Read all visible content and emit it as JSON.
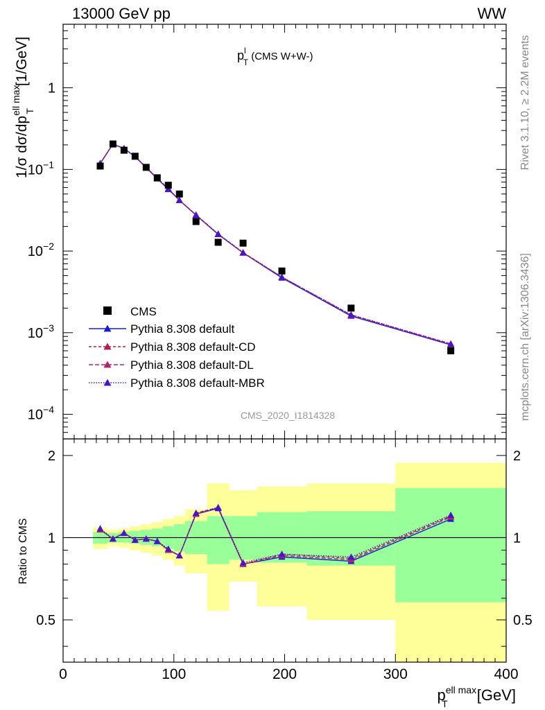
{
  "header": {
    "left": "13000 GeV pp",
    "right": "WW"
  },
  "plot_title": {
    "main": "p",
    "sup": "l",
    "sub": "T",
    "rest": " (CMS W+W-)"
  },
  "watermark": "CMS_2020_I1814328",
  "side_text": {
    "rivet": "Rivet 3.1.10, ≥ 2.2M events",
    "mcplots": "mcplots.cern.ch [arXiv:1306.3436]"
  },
  "axis_labels": {
    "y_main": {
      "prefix": "1/σ dσ/dp",
      "sup": "ell max",
      "sub": "T",
      "suffix": " [1/GeV]"
    },
    "y_ratio": "Ratio to CMS",
    "x": {
      "prefix": "p",
      "sup": "ell max",
      "sub": "T",
      "suffix": " [GeV]"
    }
  },
  "colors": {
    "data": "#000000",
    "default": "#1a1adb",
    "cd": "#b81a4a",
    "dl": "#b0246e",
    "mbr": "#4a14c8",
    "band_inner": "#99ff99",
    "band_outer": "#ffff99"
  },
  "chart_data": {
    "type": "line",
    "x_range": [
      0,
      400
    ],
    "y_range_log": [
      5e-05,
      6
    ],
    "ratio_range": [
      0.35,
      2.3
    ],
    "x_ticks": [
      0,
      100,
      200,
      300,
      400
    ],
    "y_ticks": [
      {
        "v": 1,
        "base": "1",
        "exp": ""
      },
      {
        "v": 0.1,
        "base": "10",
        "exp": "−1"
      },
      {
        "v": 0.01,
        "base": "10",
        "exp": "−2"
      },
      {
        "v": 0.001,
        "base": "10",
        "exp": "−3"
      },
      {
        "v": 0.0001,
        "base": "10",
        "exp": "−4"
      }
    ],
    "ratio_ticks": [
      0.5,
      1,
      2
    ],
    "bins": [
      {
        "lo": 27,
        "hi": 40,
        "yin": [
          0.95,
          1.05
        ],
        "yout": [
          0.91,
          1.09
        ]
      },
      {
        "lo": 40,
        "hi": 50,
        "yin": [
          0.96,
          1.04
        ],
        "yout": [
          0.93,
          1.07
        ]
      },
      {
        "lo": 50,
        "hi": 60,
        "yin": [
          0.96,
          1.05
        ],
        "yout": [
          0.92,
          1.08
        ]
      },
      {
        "lo": 60,
        "hi": 70,
        "yin": [
          0.95,
          1.06
        ],
        "yout": [
          0.9,
          1.1
        ]
      },
      {
        "lo": 70,
        "hi": 80,
        "yin": [
          0.94,
          1.07
        ],
        "yout": [
          0.88,
          1.12
        ]
      },
      {
        "lo": 80,
        "hi": 90,
        "yin": [
          0.93,
          1.08
        ],
        "yout": [
          0.86,
          1.14
        ]
      },
      {
        "lo": 90,
        "hi": 100,
        "yin": [
          0.91,
          1.1
        ],
        "yout": [
          0.83,
          1.17
        ]
      },
      {
        "lo": 100,
        "hi": 110,
        "yin": [
          0.89,
          1.12
        ],
        "yout": [
          0.79,
          1.2
        ]
      },
      {
        "lo": 110,
        "hi": 130,
        "yin": [
          0.87,
          1.15
        ],
        "yout": [
          0.74,
          1.27
        ]
      },
      {
        "lo": 130,
        "hi": 150,
        "yin": [
          0.8,
          1.2
        ],
        "yout": [
          0.54,
          1.58
        ]
      },
      {
        "lo": 150,
        "hi": 175,
        "yin": [
          0.83,
          1.2
        ],
        "yout": [
          0.69,
          1.49
        ]
      },
      {
        "lo": 175,
        "hi": 220,
        "yin": [
          0.81,
          1.24
        ],
        "yout": [
          0.56,
          1.54
        ]
      },
      {
        "lo": 220,
        "hi": 300,
        "yin": [
          0.79,
          1.25
        ],
        "yout": [
          0.5,
          1.58
        ]
      },
      {
        "lo": 300,
        "hi": 400,
        "yin": [
          0.58,
          1.52
        ],
        "yout": [
          0.35,
          1.88
        ]
      }
    ],
    "cms": {
      "name": "CMS",
      "x": [
        33.5,
        45,
        55,
        65,
        75,
        85,
        95,
        105,
        120,
        140,
        162.5,
        197.5,
        260,
        350
      ],
      "y": [
        0.11,
        0.205,
        0.172,
        0.145,
        0.106,
        0.079,
        0.064,
        0.05,
        0.023,
        0.0128,
        0.0125,
        0.0057,
        0.002,
        0.0006
      ]
    },
    "series": [
      {
        "name": "Pythia 8.308 default",
        "key": "default",
        "dash": "",
        "x": [
          33.5,
          45,
          55,
          65,
          75,
          85,
          95,
          105,
          120,
          140,
          162.5,
          197.5,
          260,
          350
        ],
        "y": [
          0.118,
          0.204,
          0.18,
          0.143,
          0.105,
          0.077,
          0.057,
          0.042,
          0.0275,
          0.016,
          0.0095,
          0.0047,
          0.0016,
          0.00071
        ],
        "ratio": [
          1.07,
          0.99,
          1.04,
          0.98,
          0.99,
          0.97,
          0.9,
          0.86,
          1.22,
          1.28,
          0.8,
          0.85,
          0.82,
          1.17
        ]
      },
      {
        "name": "Pythia 8.308 default-CD",
        "key": "cd",
        "dash": "4,3",
        "x": [
          33.5,
          45,
          55,
          65,
          75,
          85,
          95,
          105,
          120,
          140,
          162.5,
          197.5,
          260,
          350
        ],
        "y": [
          0.119,
          0.205,
          0.181,
          0.144,
          0.106,
          0.078,
          0.058,
          0.042,
          0.0278,
          0.0162,
          0.0096,
          0.0048,
          0.00165,
          0.00073
        ],
        "ratio": [
          1.07,
          0.99,
          1.04,
          0.98,
          0.99,
          0.97,
          0.9,
          0.86,
          1.23,
          1.29,
          0.8,
          0.87,
          0.84,
          1.2
        ]
      },
      {
        "name": "Pythia 8.308 default-DL",
        "key": "dl",
        "dash": "6,3",
        "x": [
          33.5,
          45,
          55,
          65,
          75,
          85,
          95,
          105,
          120,
          140,
          162.5,
          197.5,
          260,
          350
        ],
        "y": [
          0.118,
          0.205,
          0.18,
          0.144,
          0.106,
          0.078,
          0.058,
          0.042,
          0.0276,
          0.0161,
          0.0095,
          0.0048,
          0.00163,
          0.00072
        ],
        "ratio": [
          1.07,
          0.99,
          1.04,
          0.98,
          0.99,
          0.97,
          0.9,
          0.86,
          1.22,
          1.29,
          0.8,
          0.86,
          0.83,
          1.19
        ]
      },
      {
        "name": "Pythia 8.308 default-MBR",
        "key": "mbr",
        "dash": "1.5,2",
        "x": [
          33.5,
          45,
          55,
          65,
          75,
          85,
          95,
          105,
          120,
          140,
          162.5,
          197.5,
          260,
          350
        ],
        "y": [
          0.119,
          0.205,
          0.181,
          0.144,
          0.106,
          0.078,
          0.058,
          0.042,
          0.0277,
          0.0162,
          0.0096,
          0.0048,
          0.00166,
          0.00073
        ],
        "ratio": [
          1.08,
          0.99,
          1.04,
          0.98,
          0.99,
          0.97,
          0.91,
          0.86,
          1.23,
          1.29,
          0.81,
          0.87,
          0.85,
          1.21
        ]
      }
    ]
  }
}
